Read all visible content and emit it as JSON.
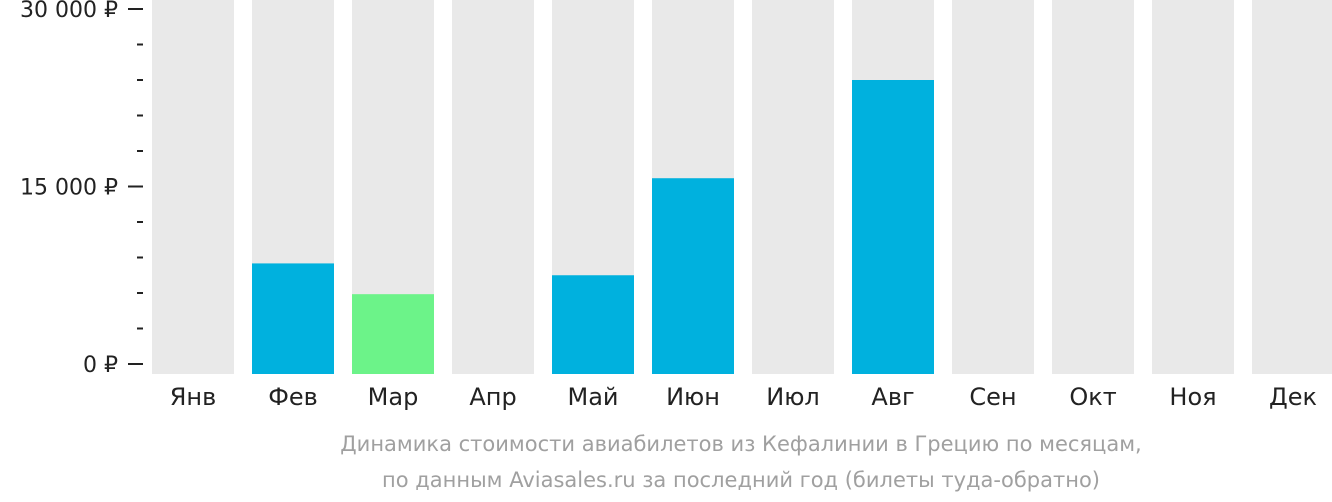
{
  "chart_data": {
    "type": "bar",
    "title": "",
    "xlabel": "",
    "ylabel": "",
    "categories": [
      "Янв",
      "Фев",
      "Мар",
      "Апр",
      "Май",
      "Июн",
      "Июл",
      "Авг",
      "Сен",
      "Окт",
      "Ноя",
      "Дек"
    ],
    "values": [
      null,
      8500,
      5900,
      null,
      7500,
      15700,
      null,
      24000,
      null,
      null,
      null,
      null
    ],
    "ylim": [
      0,
      30000
    ],
    "y_ticks": [
      {
        "value": 30000,
        "label": "30 000 ₽"
      },
      {
        "value": 15000,
        "label": "15 000 ₽"
      },
      {
        "value": 0,
        "label": "0 ₽"
      }
    ],
    "y_minor_ticks": [
      3000,
      6000,
      9000,
      12000,
      18000,
      21000,
      24000,
      27000
    ],
    "grid": false,
    "legend": "none",
    "cheapest_month": "Мар",
    "colors": {
      "bar": "#00b1de",
      "cheapest": "#6cf389",
      "background_column": "#e9e9e9",
      "axis_text": "#222222",
      "caption_text": "#a0a0a0"
    }
  },
  "caption": {
    "line1": "Динамика стоимости авиабилетов из Кефалинии в Грецию по месяцам,",
    "line2": "по данным Aviasales.ru за последний год (билеты туда-обратно)"
  }
}
